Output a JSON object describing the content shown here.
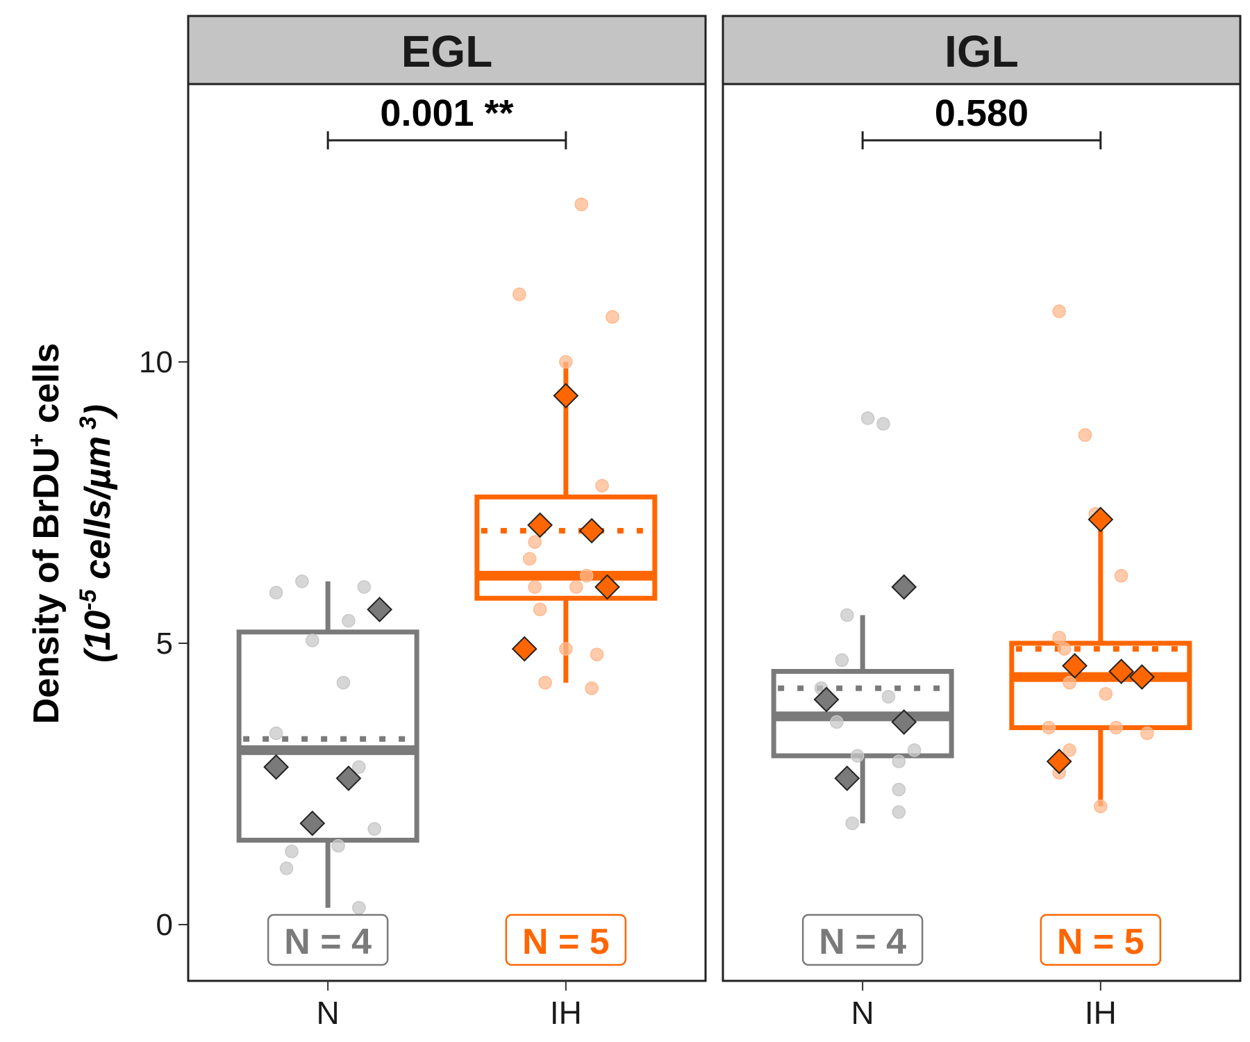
{
  "chart_data": {
    "type": "box",
    "ylabel_line1": "Density of BrDU",
    "ylabel_sup": "+",
    "ylabel_line1_end": " cells",
    "ylabel_line2_a": "(10",
    "ylabel_line2_sup1": "-5",
    "ylabel_line2_b": " cells/µm",
    "ylabel_line2_sup2": " 3",
    "ylabel_line2_c": ")",
    "ylim": [
      -1,
      16.3
    ],
    "yticks": [
      0,
      5,
      10
    ],
    "ytick_labels": [
      "0",
      "5",
      "10"
    ],
    "categories": [
      "N",
      "IH"
    ],
    "colors": {
      "N": "#7a7a7a",
      "IH": "#ff6600",
      "N_light": "#c8c8c8",
      "IH_light": "#ffb98f"
    },
    "panels": [
      {
        "strip": "EGL",
        "pvalue": "0.001 **",
        "groups": [
          {
            "category": "N",
            "n_label": "N = 4",
            "q1": 1.5,
            "median": 3.1,
            "q3": 5.2,
            "mean": 3.3,
            "whisker_low": 0.3,
            "whisker_high": 6.1,
            "animals": [
              {
                "x": 0.1,
                "y": 5.6
              },
              {
                "x": -0.1,
                "y": 2.8
              },
              {
                "x": 0.04,
                "y": 2.6
              },
              {
                "x": -0.03,
                "y": 1.8
              }
            ],
            "cells": [
              {
                "x": -0.05,
                "y": 6.1
              },
              {
                "x": -0.1,
                "y": 5.9
              },
              {
                "x": 0.07,
                "y": 6.0
              },
              {
                "x": 0.04,
                "y": 5.4
              },
              {
                "x": -0.03,
                "y": 5.05
              },
              {
                "x": 0.03,
                "y": 4.3
              },
              {
                "x": -0.1,
                "y": 3.4
              },
              {
                "x": 0.06,
                "y": 2.8
              },
              {
                "x": 0.09,
                "y": 1.7
              },
              {
                "x": -0.07,
                "y": 1.3
              },
              {
                "x": 0.02,
                "y": 1.4
              },
              {
                "x": -0.08,
                "y": 1.0
              },
              {
                "x": 0.06,
                "y": 0.3
              }
            ]
          },
          {
            "category": "IH",
            "n_label": "N = 5",
            "q1": 5.8,
            "median": 6.2,
            "q3": 7.6,
            "mean": 7.0,
            "whisker_low": 4.3,
            "whisker_high": 10.0,
            "animals": [
              {
                "x": 0.0,
                "y": 9.4
              },
              {
                "x": -0.05,
                "y": 7.1
              },
              {
                "x": 0.05,
                "y": 7.0
              },
              {
                "x": 0.08,
                "y": 6.0
              },
              {
                "x": -0.08,
                "y": 4.9
              }
            ],
            "cells": [
              {
                "x": 0.03,
                "y": 12.8
              },
              {
                "x": -0.09,
                "y": 11.2
              },
              {
                "x": 0.09,
                "y": 10.8
              },
              {
                "x": 0.0,
                "y": 10.0
              },
              {
                "x": 0.07,
                "y": 7.8
              },
              {
                "x": -0.06,
                "y": 6.8
              },
              {
                "x": -0.07,
                "y": 6.5
              },
              {
                "x": 0.04,
                "y": 6.2
              },
              {
                "x": -0.06,
                "y": 6.0
              },
              {
                "x": 0.02,
                "y": 6.0
              },
              {
                "x": -0.05,
                "y": 5.6
              },
              {
                "x": 0.0,
                "y": 4.9
              },
              {
                "x": 0.06,
                "y": 4.8
              },
              {
                "x": -0.04,
                "y": 4.3
              },
              {
                "x": 0.05,
                "y": 4.2
              }
            ]
          }
        ]
      },
      {
        "strip": "IGL",
        "pvalue": "0.580",
        "groups": [
          {
            "category": "N",
            "n_label": "N = 4",
            "q1": 3.0,
            "median": 3.7,
            "q3": 4.5,
            "mean": 4.2,
            "whisker_low": 1.8,
            "whisker_high": 5.5,
            "animals": [
              {
                "x": 0.08,
                "y": 6.0
              },
              {
                "x": -0.07,
                "y": 4.0
              },
              {
                "x": 0.08,
                "y": 3.6
              },
              {
                "x": -0.03,
                "y": 2.6
              }
            ],
            "cells": [
              {
                "x": 0.01,
                "y": 9.0
              },
              {
                "x": 0.04,
                "y": 8.9
              },
              {
                "x": -0.03,
                "y": 5.5
              },
              {
                "x": -0.04,
                "y": 4.7
              },
              {
                "x": -0.08,
                "y": 4.2
              },
              {
                "x": 0.05,
                "y": 4.05
              },
              {
                "x": -0.05,
                "y": 3.6
              },
              {
                "x": 0.1,
                "y": 3.1
              },
              {
                "x": -0.01,
                "y": 3.0
              },
              {
                "x": 0.07,
                "y": 2.9
              },
              {
                "x": 0.07,
                "y": 2.4
              },
              {
                "x": 0.07,
                "y": 2.0
              },
              {
                "x": -0.02,
                "y": 1.8
              }
            ]
          },
          {
            "category": "IH",
            "n_label": "N = 5",
            "q1": 3.5,
            "median": 4.4,
            "q3": 5.0,
            "mean": 4.9,
            "whisker_low": 2.1,
            "whisker_high": 7.2,
            "animals": [
              {
                "x": 0.0,
                "y": 7.2
              },
              {
                "x": -0.05,
                "y": 4.6
              },
              {
                "x": 0.04,
                "y": 4.5
              },
              {
                "x": 0.08,
                "y": 4.4
              },
              {
                "x": -0.08,
                "y": 2.9
              }
            ],
            "cells": [
              {
                "x": -0.08,
                "y": 10.9
              },
              {
                "x": -0.03,
                "y": 8.7
              },
              {
                "x": -0.01,
                "y": 7.3
              },
              {
                "x": 0.04,
                "y": 6.2
              },
              {
                "x": -0.08,
                "y": 5.1
              },
              {
                "x": -0.07,
                "y": 4.9
              },
              {
                "x": -0.06,
                "y": 4.3
              },
              {
                "x": 0.01,
                "y": 4.1
              },
              {
                "x": -0.1,
                "y": 3.5
              },
              {
                "x": 0.03,
                "y": 3.5
              },
              {
                "x": 0.09,
                "y": 3.4
              },
              {
                "x": -0.06,
                "y": 3.1
              },
              {
                "x": -0.08,
                "y": 2.7
              },
              {
                "x": 0.0,
                "y": 2.1
              }
            ]
          }
        ]
      }
    ]
  }
}
